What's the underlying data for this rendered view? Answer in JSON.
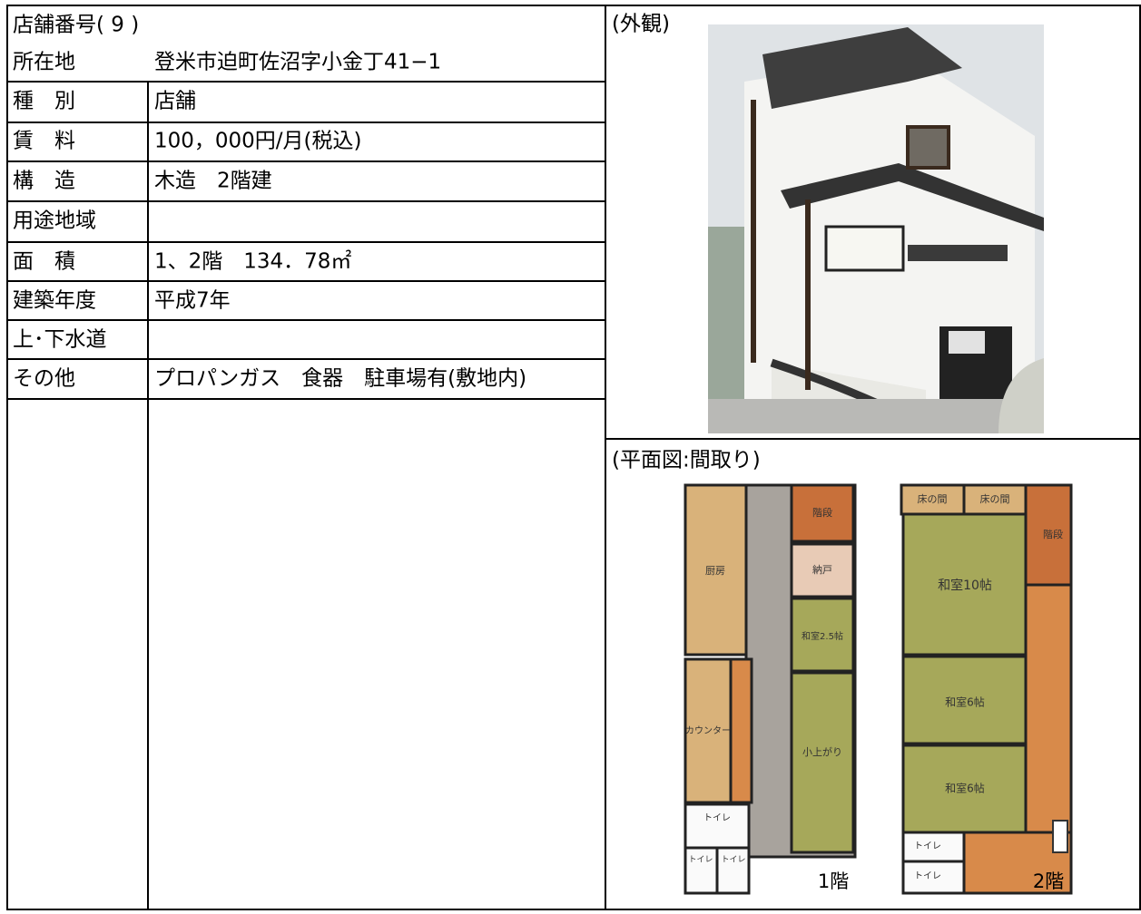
{
  "header": {
    "title": "店舗番号( 9 )"
  },
  "table": {
    "rows": [
      [
        "所在地",
        "登米市迫町佐沼字小金丁41−1"
      ],
      [
        "種　別",
        "店舗"
      ],
      [
        "賃　料",
        "100，000円/月(税込)"
      ],
      [
        "構　造",
        "木造　2階建"
      ],
      [
        "用途地域"
      ],
      [
        "面　積",
        "1、2階　134．78㎡"
      ],
      [
        "建築年度",
        "平成7年"
      ],
      [
        "上･下水道"
      ],
      [
        "その他",
        "プロパンガス　食器　駐車場有(敷地内)"
      ]
    ]
  },
  "exterior": {
    "label": "(外観)"
  },
  "floor_plan": {
    "label": "(平面図:間取り)",
    "floor1": {
      "name": "1階",
      "rooms": [
        "階段",
        "厨房",
        "納戸",
        "和室2.5帖",
        "カウンター",
        "小上がり",
        "トイレ",
        "トイレ",
        "トイレ"
      ]
    },
    "floor2": {
      "name": "2階",
      "rooms": [
        "床の間",
        "床の間",
        "階段",
        "和室10帖",
        "和室6帖",
        "和室6帖",
        "トイレ",
        "トイレ"
      ]
    }
  }
}
